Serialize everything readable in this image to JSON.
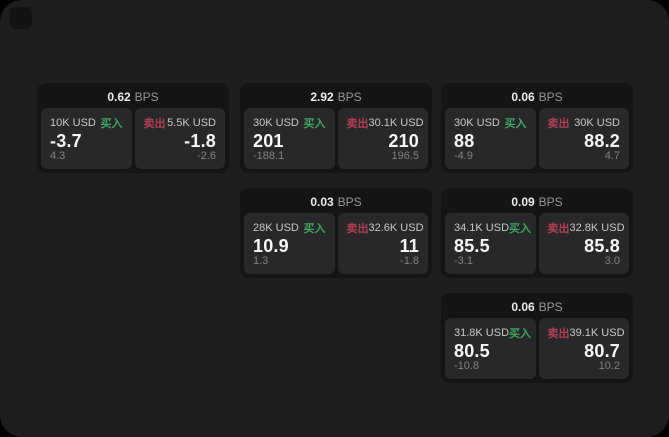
{
  "labels": {
    "bps": "BPS",
    "buy": "买入",
    "sell": "卖出"
  },
  "colors": {
    "buy_green": "#3fa564",
    "sell_red": "#b23e55",
    "panel_bg": "#1d1d1f",
    "card_bg": "#141416",
    "subcard_bg": "#28282b"
  },
  "cards": [
    {
      "bps": "0.62",
      "buy": {
        "amount": "10K USD",
        "price": "-3.7",
        "change": "4.3"
      },
      "sell": {
        "amount": "5.5K USD",
        "price": "-1.8",
        "change": "-2.6"
      }
    },
    {
      "bps": "2.92",
      "buy": {
        "amount": "30K USD",
        "price": "201",
        "change": "-188.1"
      },
      "sell": {
        "amount": "30.1K USD",
        "price": "210",
        "change": "196.5"
      }
    },
    {
      "bps": "0.06",
      "buy": {
        "amount": "30K USD",
        "price": "88",
        "change": "-4.9"
      },
      "sell": {
        "amount": "30K USD",
        "price": "88.2",
        "change": "4.7"
      }
    },
    {
      "bps": "0.03",
      "buy": {
        "amount": "28K USD",
        "price": "10.9",
        "change": "1.3"
      },
      "sell": {
        "amount": "32.6K USD",
        "price": "11",
        "change": "-1.8"
      }
    },
    {
      "bps": "0.09",
      "buy": {
        "amount": "34.1K USD",
        "price": "85.5",
        "change": "-3.1"
      },
      "sell": {
        "amount": "32.8K USD",
        "price": "85.8",
        "change": "3.0"
      }
    },
    {
      "bps": "0.06",
      "buy": {
        "amount": "31.8K USD",
        "price": "80.5",
        "change": "-10.8"
      },
      "sell": {
        "amount": "39.1K USD",
        "price": "80.7",
        "change": "10.2"
      }
    }
  ]
}
